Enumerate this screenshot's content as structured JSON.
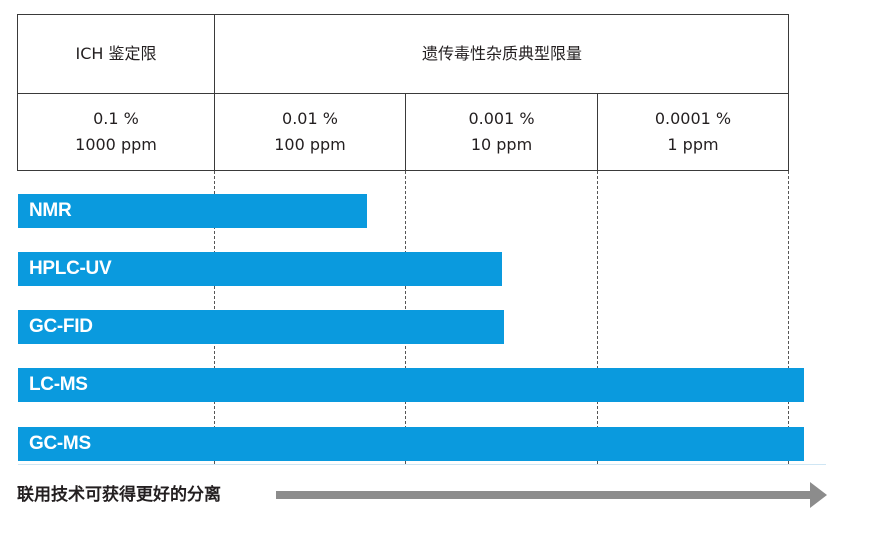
{
  "table": {
    "header_left": "ICH 鉴定限",
    "header_right": "遗传毒性杂质典型限量",
    "limits": [
      {
        "percent": "0.1 %",
        "ppm": "1000 ppm"
      },
      {
        "percent": "0.01 %",
        "ppm": "100 ppm"
      },
      {
        "percent": "0.001 %",
        "ppm": "10 ppm"
      },
      {
        "percent": "0.0001 %",
        "ppm": "1 ppm"
      }
    ]
  },
  "techniques": [
    {
      "name": "NMR"
    },
    {
      "name": "HPLC-UV"
    },
    {
      "name": "GC-FID"
    },
    {
      "name": "LC-MS"
    },
    {
      "name": "GC-MS"
    }
  ],
  "footer": {
    "separation_label": "联用技术可获得更好的分离"
  },
  "colors": {
    "bar": "#0a9ade",
    "arrow": "#8c8c8c",
    "grid": "#3a3a3a"
  }
}
